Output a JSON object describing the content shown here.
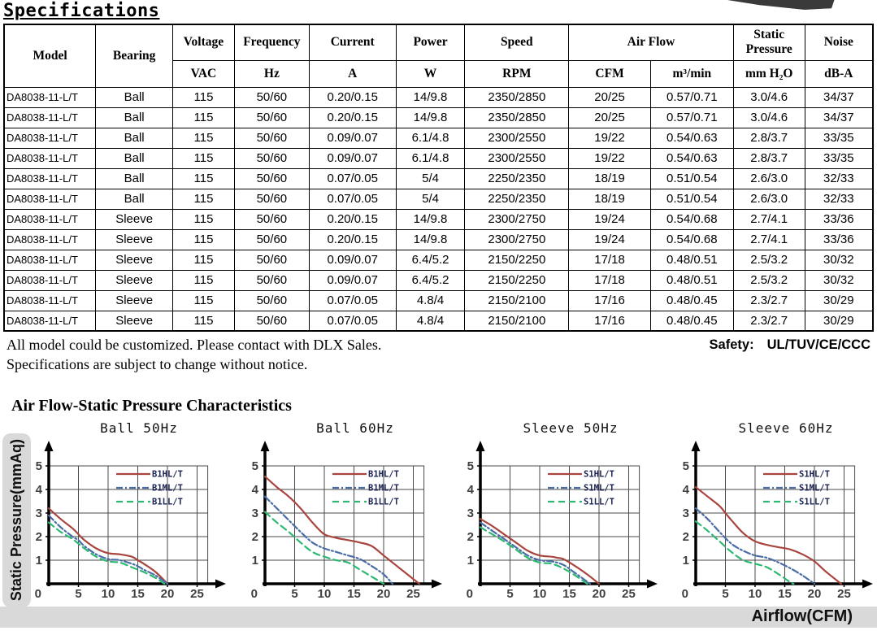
{
  "page": {
    "title": "Specifications",
    "notes": [
      "All model could be customized. Please contact with DLX Sales.",
      "Specifications are subject to change without notice."
    ],
    "safety_label": "Safety:",
    "safety_value": "UL/TUV/CE/CCC",
    "section_heading": "Air Flow-Static Pressure Characteristics"
  },
  "axes": {
    "ylabel": "Static Pressure(mmAq)",
    "xlabel": "Airflow(CFM)"
  },
  "colors": {
    "curve_red": "#a8453f",
    "curve_blue": "#4a6da7",
    "curve_green": "#2fb873",
    "legend_text": "#1b2355",
    "gray_bar": "#d9d9d9",
    "grid_line": "#4a4a4a",
    "tick_text": "#3f3f3f"
  },
  "table": {
    "header": {
      "model": "Model",
      "bearing": "Bearing",
      "voltage": {
        "label": "Voltage",
        "unit": "VAC"
      },
      "frequency": {
        "label": "Frequency",
        "unit": "Hz"
      },
      "current": {
        "label": "Current",
        "unit": "A"
      },
      "power": {
        "label": "Power",
        "unit": "W"
      },
      "speed": {
        "label": "Speed",
        "unit": "RPM"
      },
      "air_flow": {
        "label": "Air Flow",
        "unit_cfm": "CFM",
        "unit_m3": "m³/min"
      },
      "static_pressure": {
        "label": "Static Pressure",
        "unit": "mm H₂O"
      },
      "noise": {
        "label": "Noise",
        "unit": "dB-A"
      }
    },
    "rows": [
      [
        "DA8038-11-L/T",
        "Ball",
        "115",
        "50/60",
        "0.20/0.15",
        "14/9.8",
        "2350/2850",
        "20/25",
        "0.57/0.71",
        "3.0/4.6",
        "34/37"
      ],
      [
        "DA8038-11-L/T",
        "Ball",
        "115",
        "50/60",
        "0.20/0.15",
        "14/9.8",
        "2350/2850",
        "20/25",
        "0.57/0.71",
        "3.0/4.6",
        "34/37"
      ],
      [
        "DA8038-11-L/T",
        "Ball",
        "115",
        "50/60",
        "0.09/0.07",
        "6.1/4.8",
        "2300/2550",
        "19/22",
        "0.54/0.63",
        "2.8/3.7",
        "33/35"
      ],
      [
        "DA8038-11-L/T",
        "Ball",
        "115",
        "50/60",
        "0.09/0.07",
        "6.1/4.8",
        "2300/2550",
        "19/22",
        "0.54/0.63",
        "2.8/3.7",
        "33/35"
      ],
      [
        "DA8038-11-L/T",
        "Ball",
        "115",
        "50/60",
        "0.07/0.05",
        "5/4",
        "2250/2350",
        "18/19",
        "0.51/0.54",
        "2.6/3.0",
        "32/33"
      ],
      [
        "DA8038-11-L/T",
        "Ball",
        "115",
        "50/60",
        "0.07/0.05",
        "5/4",
        "2250/2350",
        "18/19",
        "0.51/0.54",
        "2.6/3.0",
        "32/33"
      ],
      [
        "DA8038-11-L/T",
        "Sleeve",
        "115",
        "50/60",
        "0.20/0.15",
        "14/9.8",
        "2300/2750",
        "19/24",
        "0.54/0.68",
        "2.7/4.1",
        "33/36"
      ],
      [
        "DA8038-11-L/T",
        "Sleeve",
        "115",
        "50/60",
        "0.20/0.15",
        "14/9.8",
        "2300/2750",
        "19/24",
        "0.54/0.68",
        "2.7/4.1",
        "33/36"
      ],
      [
        "DA8038-11-L/T",
        "Sleeve",
        "115",
        "50/60",
        "0.09/0.07",
        "6.4/5.2",
        "2150/2250",
        "17/18",
        "0.48/0.51",
        "2.5/3.2",
        "30/32"
      ],
      [
        "DA8038-11-L/T",
        "Sleeve",
        "115",
        "50/60",
        "0.09/0.07",
        "6.4/5.2",
        "2150/2250",
        "17/18",
        "0.48/0.51",
        "2.5/3.2",
        "30/32"
      ],
      [
        "DA8038-11-L/T",
        "Sleeve",
        "115",
        "50/60",
        "0.07/0.05",
        "4.8/4",
        "2150/2100",
        "17/16",
        "0.48/0.45",
        "2.3/2.7",
        "30/29"
      ],
      [
        "DA8038-11-L/T",
        "Sleeve",
        "115",
        "50/60",
        "0.07/0.05",
        "4.8/4",
        "2150/2100",
        "17/16",
        "0.48/0.45",
        "2.3/2.7",
        "30/29"
      ]
    ]
  },
  "chart_data": [
    {
      "type": "line",
      "title": "Ball 50Hz",
      "xlabel": "Airflow(CFM)",
      "ylabel": "Static Pressure(mmAq)",
      "xlim": [
        0,
        27
      ],
      "ylim": [
        0,
        5
      ],
      "xticks": [
        0,
        5,
        10,
        15,
        20,
        25
      ],
      "yticks": [
        0,
        1,
        2,
        3,
        4,
        5
      ],
      "grid": true,
      "legend_position": "top-right",
      "series": [
        {
          "name": "B1HL/T",
          "color": "#a8453f",
          "style": "solid",
          "points": [
            [
              0,
              3.2
            ],
            [
              2,
              2.75
            ],
            [
              4,
              2.35
            ],
            [
              5,
              2.1
            ],
            [
              6,
              1.85
            ],
            [
              8,
              1.5
            ],
            [
              10,
              1.3
            ],
            [
              12,
              1.25
            ],
            [
              14,
              1.15
            ],
            [
              15,
              1.0
            ],
            [
              16,
              0.85
            ],
            [
              18,
              0.5
            ],
            [
              20,
              0
            ]
          ]
        },
        {
          "name": "B1ML/T",
          "color": "#4a6da7",
          "style": "dash-dot",
          "points": [
            [
              0,
              2.9
            ],
            [
              2,
              2.4
            ],
            [
              4,
              2.0
            ],
            [
              5,
              1.85
            ],
            [
              6,
              1.6
            ],
            [
              8,
              1.25
            ],
            [
              10,
              1.05
            ],
            [
              12,
              1.0
            ],
            [
              14,
              0.85
            ],
            [
              15,
              0.75
            ],
            [
              16,
              0.6
            ],
            [
              18,
              0.35
            ],
            [
              20,
              0
            ]
          ]
        },
        {
          "name": "B1LL/T",
          "color": "#2fb873",
          "style": "dashed",
          "points": [
            [
              0,
              2.6
            ],
            [
              2,
              2.2
            ],
            [
              4,
              1.9
            ],
            [
              5,
              1.7
            ],
            [
              6,
              1.5
            ],
            [
              8,
              1.15
            ],
            [
              10,
              0.95
            ],
            [
              12,
              0.9
            ],
            [
              14,
              0.7
            ],
            [
              15,
              0.6
            ],
            [
              16,
              0.5
            ],
            [
              18,
              0.25
            ],
            [
              19.5,
              0
            ]
          ]
        }
      ]
    },
    {
      "type": "line",
      "title": "Ball 60Hz",
      "xlabel": "Airflow(CFM)",
      "ylabel": "Static Pressure(mmAq)",
      "xlim": [
        0,
        27
      ],
      "ylim": [
        0,
        5
      ],
      "xticks": [
        0,
        5,
        10,
        15,
        20,
        25
      ],
      "yticks": [
        0,
        1,
        2,
        3,
        4,
        5
      ],
      "grid": true,
      "legend_position": "top-right",
      "series": [
        {
          "name": "B1HL/T",
          "color": "#a8453f",
          "style": "solid",
          "points": [
            [
              0,
              4.55
            ],
            [
              2,
              4.1
            ],
            [
              4,
              3.7
            ],
            [
              6,
              3.2
            ],
            [
              7,
              2.9
            ],
            [
              8,
              2.6
            ],
            [
              10,
              2.1
            ],
            [
              12,
              1.95
            ],
            [
              14,
              1.85
            ],
            [
              16,
              1.75
            ],
            [
              18,
              1.6
            ],
            [
              20,
              1.2
            ],
            [
              22,
              0.8
            ],
            [
              24,
              0.4
            ],
            [
              26,
              0
            ]
          ]
        },
        {
          "name": "B1ML/T",
          "color": "#4a6da7",
          "style": "dash-dot",
          "points": [
            [
              0,
              3.7
            ],
            [
              2,
              3.2
            ],
            [
              4,
              2.7
            ],
            [
              6,
              2.2
            ],
            [
              8,
              1.75
            ],
            [
              10,
              1.5
            ],
            [
              12,
              1.35
            ],
            [
              14,
              1.2
            ],
            [
              16,
              1.05
            ],
            [
              18,
              0.75
            ],
            [
              20,
              0.4
            ],
            [
              21.5,
              0
            ]
          ]
        },
        {
          "name": "B1LL/T",
          "color": "#2fb873",
          "style": "dashed",
          "points": [
            [
              0,
              3.05
            ],
            [
              2,
              2.6
            ],
            [
              4,
              2.2
            ],
            [
              6,
              1.75
            ],
            [
              8,
              1.35
            ],
            [
              10,
              1.15
            ],
            [
              12,
              1.0
            ],
            [
              14,
              0.9
            ],
            [
              16,
              0.6
            ],
            [
              18,
              0.3
            ],
            [
              20,
              0
            ]
          ]
        }
      ]
    },
    {
      "type": "line",
      "title": "Sleeve 50Hz",
      "xlabel": "Airflow(CFM)",
      "ylabel": "Static Pressure(mmAq)",
      "xlim": [
        0,
        27
      ],
      "ylim": [
        0,
        5
      ],
      "xticks": [
        0,
        5,
        10,
        15,
        20,
        25
      ],
      "yticks": [
        0,
        1,
        2,
        3,
        4,
        5
      ],
      "grid": true,
      "legend_position": "top-right",
      "series": [
        {
          "name": "S1HL/T",
          "color": "#a8453f",
          "style": "solid",
          "points": [
            [
              0,
              2.75
            ],
            [
              2,
              2.45
            ],
            [
              4,
              2.1
            ],
            [
              6,
              1.75
            ],
            [
              8,
              1.4
            ],
            [
              10,
              1.2
            ],
            [
              12,
              1.15
            ],
            [
              13,
              1.1
            ],
            [
              14,
              1.05
            ],
            [
              16,
              0.75
            ],
            [
              18,
              0.4
            ],
            [
              20,
              0
            ]
          ]
        },
        {
          "name": "S1ML/T",
          "color": "#4a6da7",
          "style": "dash-dot",
          "points": [
            [
              0,
              2.6
            ],
            [
              2,
              2.25
            ],
            [
              4,
              1.9
            ],
            [
              6,
              1.55
            ],
            [
              8,
              1.2
            ],
            [
              10,
              1.0
            ],
            [
              12,
              0.95
            ],
            [
              14,
              0.8
            ],
            [
              16,
              0.45
            ],
            [
              18.5,
              0
            ]
          ]
        },
        {
          "name": "S1LL/T",
          "color": "#2fb873",
          "style": "dashed",
          "points": [
            [
              0,
              2.4
            ],
            [
              2,
              2.1
            ],
            [
              4,
              1.8
            ],
            [
              6,
              1.45
            ],
            [
              8,
              1.1
            ],
            [
              10,
              0.9
            ],
            [
              12,
              0.85
            ],
            [
              14,
              0.65
            ],
            [
              16,
              0.35
            ],
            [
              18,
              0
            ]
          ]
        }
      ]
    },
    {
      "type": "line",
      "title": "Sleeve 60Hz",
      "xlabel": "Airflow(CFM)",
      "ylabel": "Static Pressure(mmAq)",
      "xlim": [
        0,
        27
      ],
      "ylim": [
        0,
        5
      ],
      "xticks": [
        0,
        5,
        10,
        15,
        20,
        25
      ],
      "yticks": [
        0,
        1,
        2,
        3,
        4,
        5
      ],
      "grid": true,
      "legend_position": "top-right",
      "series": [
        {
          "name": "S1HL/T",
          "color": "#a8453f",
          "style": "solid",
          "points": [
            [
              0,
              4.1
            ],
            [
              2,
              3.7
            ],
            [
              4,
              3.3
            ],
            [
              5,
              3.0
            ],
            [
              6,
              2.7
            ],
            [
              8,
              2.15
            ],
            [
              10,
              1.8
            ],
            [
              12,
              1.65
            ],
            [
              14,
              1.55
            ],
            [
              16,
              1.45
            ],
            [
              18,
              1.25
            ],
            [
              20,
              0.95
            ],
            [
              22,
              0.5
            ],
            [
              24.5,
              0
            ]
          ]
        },
        {
          "name": "S1ML/T",
          "color": "#4a6da7",
          "style": "dash-dot",
          "points": [
            [
              0,
              3.2
            ],
            [
              2,
              2.75
            ],
            [
              4,
              2.2
            ],
            [
              6,
              1.7
            ],
            [
              8,
              1.4
            ],
            [
              10,
              1.2
            ],
            [
              12,
              1.1
            ],
            [
              14,
              0.9
            ],
            [
              16,
              0.65
            ],
            [
              18,
              0.35
            ],
            [
              20,
              0
            ]
          ]
        },
        {
          "name": "S1LL/T",
          "color": "#2fb873",
          "style": "dashed",
          "points": [
            [
              0,
              2.65
            ],
            [
              2,
              2.25
            ],
            [
              4,
              1.8
            ],
            [
              6,
              1.35
            ],
            [
              8,
              1.0
            ],
            [
              10,
              0.85
            ],
            [
              12,
              0.7
            ],
            [
              14,
              0.4
            ],
            [
              16,
              0.05
            ],
            [
              16.5,
              0
            ]
          ]
        }
      ]
    }
  ]
}
